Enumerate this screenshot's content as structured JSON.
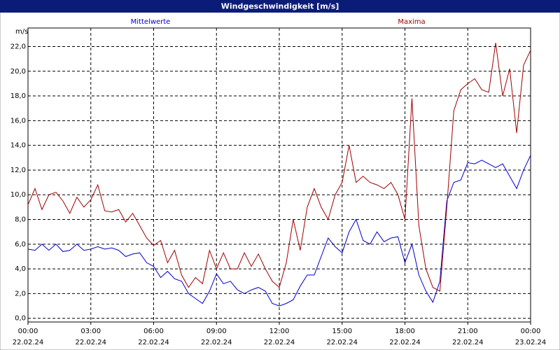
{
  "chart_data": {
    "type": "line",
    "title": "Windgeschwindigkeit [m/s]",
    "y_label": "m/s",
    "x": [
      0,
      20,
      40,
      60,
      80,
      100,
      120,
      140,
      160,
      180,
      200,
      220,
      240,
      260,
      280,
      300,
      320,
      340,
      360,
      380,
      400,
      420,
      440,
      460,
      480,
      500,
      520,
      540,
      560,
      580,
      600,
      620,
      640,
      660,
      680,
      700,
      720,
      740,
      760,
      780,
      800,
      820,
      840,
      860,
      880,
      900,
      920,
      940,
      960,
      980,
      1000,
      1020,
      1040,
      1060,
      1080,
      1100,
      1120,
      1140,
      1160,
      1180,
      1200,
      1220,
      1240,
      1260,
      1280,
      1300,
      1320,
      1340,
      1360,
      1380,
      1400,
      1420,
      1440
    ],
    "series": [
      {
        "name": "Mittelwerte",
        "color": "#0000cc",
        "values": [
          5.6,
          5.5,
          6.0,
          5.5,
          6.0,
          5.4,
          5.5,
          6.0,
          5.5,
          5.6,
          5.8,
          5.6,
          5.7,
          5.5,
          5.0,
          5.2,
          5.3,
          4.5,
          4.2,
          3.3,
          3.8,
          3.2,
          3.0,
          2.0,
          1.6,
          1.2,
          2.2,
          3.6,
          2.8,
          3.0,
          2.3,
          2.0,
          2.3,
          2.5,
          2.2,
          1.2,
          1.0,
          1.2,
          1.5,
          2.6,
          3.5,
          3.5,
          5.0,
          6.5,
          5.8,
          5.3,
          7.0,
          8.0,
          6.3,
          6.0,
          7.0,
          6.2,
          6.5,
          6.6,
          4.5,
          6.0,
          3.5,
          2.2,
          1.3,
          3.0,
          9.5,
          11.0,
          11.2,
          12.6,
          12.5,
          12.8,
          12.5,
          12.2,
          12.5,
          11.5,
          10.5,
          12.0,
          13.2
        ]
      },
      {
        "name": "Maxima",
        "color": "#a00000",
        "values": [
          9.2,
          10.5,
          8.8,
          10.0,
          10.2,
          9.5,
          8.5,
          9.8,
          9.0,
          9.6,
          10.8,
          8.7,
          8.6,
          8.8,
          7.8,
          8.5,
          7.5,
          6.5,
          5.9,
          6.3,
          4.5,
          5.5,
          3.5,
          2.5,
          3.3,
          2.8,
          5.5,
          4.0,
          5.3,
          4.0,
          4.0,
          5.3,
          4.2,
          5.2,
          4.0,
          3.0,
          2.5,
          4.5,
          8.0,
          5.5,
          9.0,
          10.5,
          9.0,
          8.0,
          10.0,
          11.0,
          14.0,
          11.0,
          11.5,
          11.0,
          10.8,
          10.5,
          11.0,
          10.0,
          8.0,
          17.8,
          7.5,
          4.0,
          2.5,
          2.2,
          9.0,
          16.8,
          18.5,
          19.0,
          19.4,
          18.5,
          18.3,
          22.3,
          18.0,
          20.2,
          15.0,
          20.5,
          21.7
        ]
      }
    ],
    "xlim": [
      0,
      1440
    ],
    "xticks": [
      {
        "value": 0,
        "label": "00:00",
        "date": "22.02.24"
      },
      {
        "value": 180,
        "label": "03:00",
        "date": "22.02.24"
      },
      {
        "value": 360,
        "label": "06:00",
        "date": "22.02.24"
      },
      {
        "value": 540,
        "label": "09:00",
        "date": "22.02.24"
      },
      {
        "value": 720,
        "label": "12:00",
        "date": "22.02.24"
      },
      {
        "value": 900,
        "label": "15:00",
        "date": "22.02.24"
      },
      {
        "value": 1080,
        "label": "18:00",
        "date": "22.02.24"
      },
      {
        "value": 1260,
        "label": "21:00",
        "date": "22.02.24"
      },
      {
        "value": 1440,
        "label": "00:00",
        "date": "23.02.24"
      }
    ],
    "ylim": [
      -0.3,
      23.5
    ],
    "yticks": [
      {
        "value": 0,
        "label": "0,0"
      },
      {
        "value": 2,
        "label": "2,0"
      },
      {
        "value": 4,
        "label": "4,0"
      },
      {
        "value": 6,
        "label": "6,0"
      },
      {
        "value": 8,
        "label": "8,0"
      },
      {
        "value": 10,
        "label": "10,0"
      },
      {
        "value": 12,
        "label": "12,0"
      },
      {
        "value": 14,
        "label": "14,0"
      },
      {
        "value": 16,
        "label": "16,0"
      },
      {
        "value": 18,
        "label": "18,0"
      },
      {
        "value": 20,
        "label": "20,0"
      },
      {
        "value": 22,
        "label": "22,0"
      }
    ],
    "grid": true
  }
}
